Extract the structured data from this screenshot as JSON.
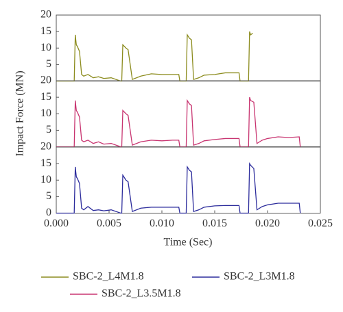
{
  "chart_data": [
    {
      "type": "line",
      "x": [
        0,
        0.0017,
        0.0018,
        0.0019,
        0.002,
        0.0022,
        0.0024,
        0.0026,
        0.003,
        0.0035,
        0.004,
        0.0045,
        0.0052,
        0.0061,
        0.0062,
        0.0063,
        0.0066,
        0.0068,
        0.0072,
        0.008,
        0.009,
        0.01,
        0.011,
        0.0116,
        0.0117,
        0.0123,
        0.0124,
        0.0126,
        0.0128,
        0.013,
        0.0135,
        0.014,
        0.015,
        0.016,
        0.017,
        0.0173,
        0.0174,
        0.0182,
        0.0183,
        0.0184,
        0.0186
      ],
      "series": [
        {
          "name": "SBC-2_L4M1.8",
          "color": "#8c8c1e",
          "values": [
            0,
            0,
            14,
            11,
            10.5,
            9,
            2,
            1.5,
            2,
            1,
            1.3,
            0.8,
            1,
            0,
            0,
            11,
            10,
            9.5,
            0.5,
            1.5,
            2.2,
            2,
            2,
            2,
            0,
            0,
            14,
            13,
            12.5,
            0.5,
            1,
            1.8,
            2,
            2.5,
            2.5,
            2.5,
            0,
            0,
            15,
            14,
            14.5
          ]
        }
      ],
      "xlim": [
        0,
        0.025
      ],
      "ylim": [
        0,
        20
      ],
      "yticks": [
        5,
        10,
        15,
        20
      ]
    },
    {
      "type": "line",
      "ylabel": "Impact Force (MN)",
      "x": [
        0,
        0.0017,
        0.0018,
        0.0019,
        0.002,
        0.0022,
        0.0024,
        0.0026,
        0.003,
        0.0035,
        0.004,
        0.0045,
        0.0052,
        0.0061,
        0.0062,
        0.0063,
        0.0066,
        0.0068,
        0.0072,
        0.008,
        0.009,
        0.01,
        0.011,
        0.0116,
        0.0117,
        0.0123,
        0.0124,
        0.0126,
        0.0128,
        0.013,
        0.0135,
        0.014,
        0.015,
        0.016,
        0.017,
        0.0173,
        0.0174,
        0.0182,
        0.0183,
        0.0184,
        0.0187,
        0.019,
        0.0195,
        0.02,
        0.021,
        0.022,
        0.023,
        0.0231
      ],
      "series": [
        {
          "name": "SBC-2_L3.5M1.8",
          "color": "#c83470",
          "values": [
            0,
            0,
            14,
            11,
            10.5,
            9,
            2,
            1.5,
            2,
            1,
            1.5,
            0.8,
            1,
            0,
            0,
            11,
            10,
            9.5,
            0.5,
            1.5,
            2,
            1.8,
            2,
            2,
            0,
            0,
            14,
            13,
            12.5,
            0.5,
            1,
            1.8,
            2.2,
            2.5,
            2.5,
            2.5,
            0,
            0,
            15,
            14,
            13.5,
            1,
            2,
            2.5,
            3,
            2.8,
            3,
            0
          ]
        }
      ],
      "xlim": [
        0,
        0.025
      ],
      "ylim": [
        0,
        20
      ],
      "yticks": [
        5,
        10,
        15,
        20
      ]
    },
    {
      "type": "line",
      "xlabel": "Time (Sec)",
      "x": [
        0,
        0.0017,
        0.0018,
        0.0019,
        0.002,
        0.0022,
        0.0024,
        0.0026,
        0.003,
        0.0035,
        0.004,
        0.0045,
        0.0052,
        0.0061,
        0.0062,
        0.0063,
        0.0066,
        0.0068,
        0.0072,
        0.008,
        0.009,
        0.01,
        0.011,
        0.0116,
        0.0117,
        0.0123,
        0.0124,
        0.0126,
        0.0128,
        0.013,
        0.0135,
        0.014,
        0.015,
        0.016,
        0.017,
        0.0173,
        0.0174,
        0.0182,
        0.0183,
        0.0184,
        0.0187,
        0.019,
        0.0195,
        0.02,
        0.021,
        0.022,
        0.023,
        0.0231
      ],
      "series": [
        {
          "name": "SBC-2_L3M1.8",
          "color": "#2c2c9c",
          "values": [
            0,
            0,
            14,
            11,
            10.5,
            9,
            1.5,
            1,
            2,
            0.8,
            1,
            0.7,
            1,
            0,
            0,
            11.5,
            10,
            9.5,
            0.5,
            1.5,
            1.8,
            1.8,
            1.8,
            1.8,
            0,
            0,
            14,
            13,
            12.5,
            0.5,
            1,
            1.8,
            2.2,
            2.3,
            2.3,
            2.3,
            0,
            0,
            15,
            14.5,
            13.5,
            1,
            2,
            2.5,
            3,
            3,
            3,
            0
          ]
        }
      ],
      "xlim": [
        0,
        0.025
      ],
      "ylim": [
        0,
        20
      ],
      "yticks": [
        0,
        5,
        10,
        15,
        20
      ],
      "xticks": [
        {
          "value": 0,
          "label": "0.000"
        },
        {
          "value": 0.005,
          "label": "0.005"
        },
        {
          "value": 0.01,
          "label": "0.010"
        },
        {
          "value": 0.015,
          "label": "0.015"
        },
        {
          "value": 0.02,
          "label": "0.020"
        },
        {
          "value": 0.025,
          "label": "0.025"
        }
      ]
    }
  ]
}
